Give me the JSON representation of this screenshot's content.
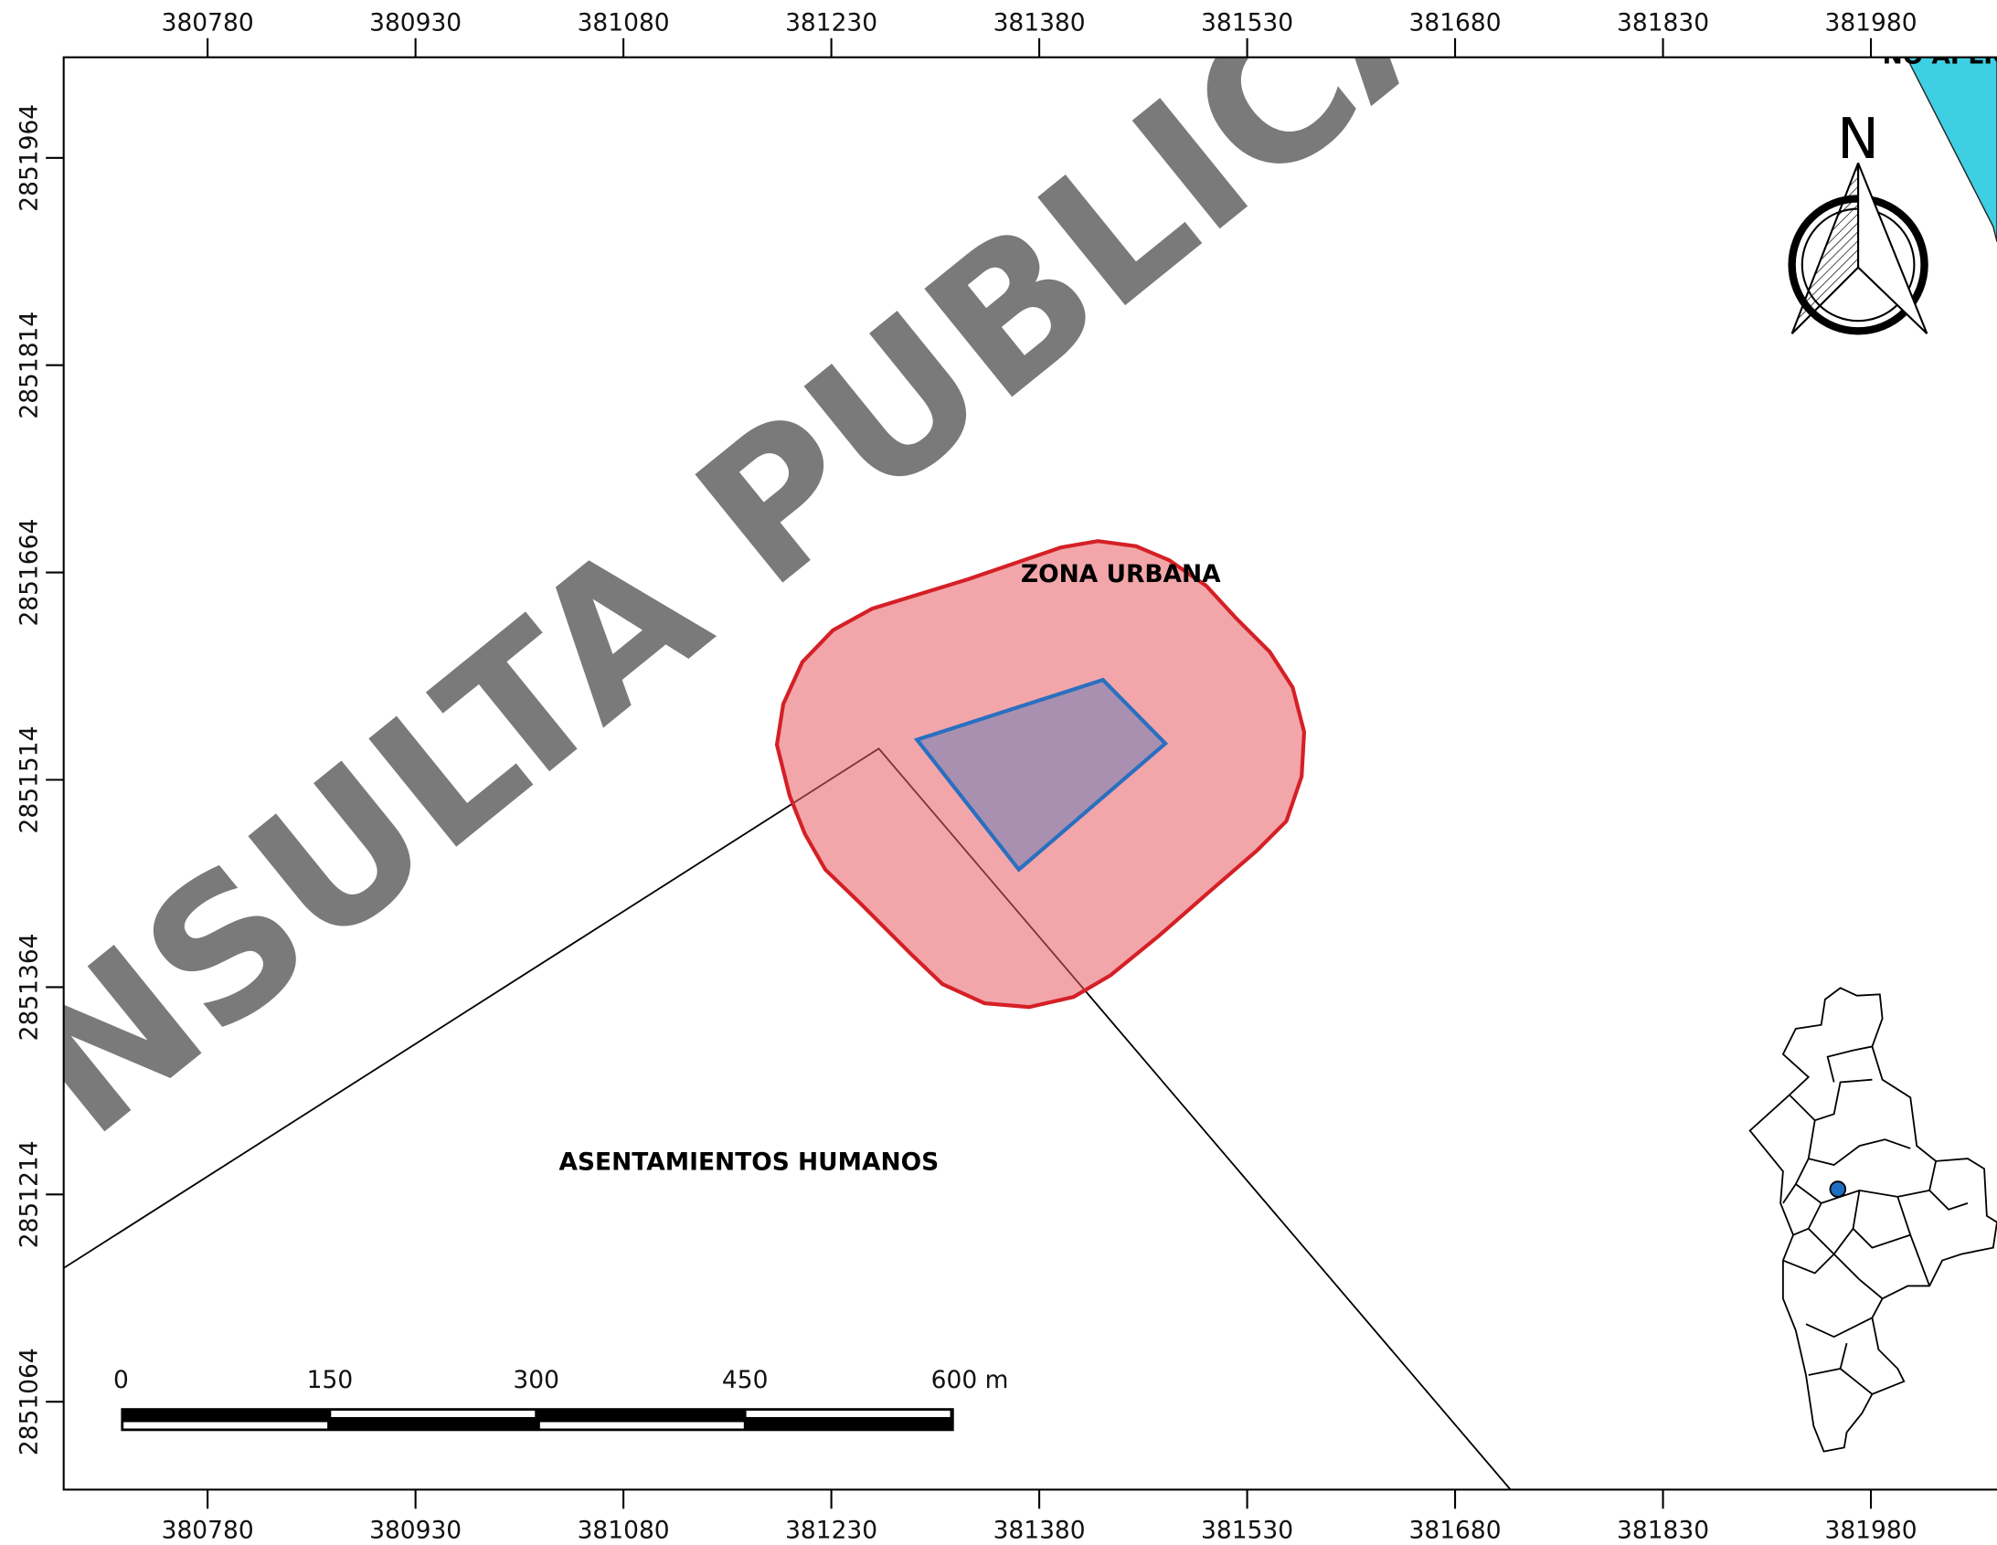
{
  "map": {
    "watermark": "CONSULTA PUBLICA",
    "north": "N",
    "zone_labels": {
      "zona_urbana": "ZONA URBANA",
      "asentamientos": "ASENTAMIENTOS HUMANOS",
      "no_aplica": "NO APLICA"
    },
    "x_ticks": [
      380780,
      380930,
      381080,
      381230,
      381380,
      381530,
      381680,
      381830,
      381980
    ],
    "y_ticks": [
      2851964,
      2851814,
      2851664,
      2851514,
      2851364,
      2851214,
      2851064
    ],
    "scale_bar": [
      "0",
      "150",
      "300",
      "450",
      "600 m"
    ]
  }
}
